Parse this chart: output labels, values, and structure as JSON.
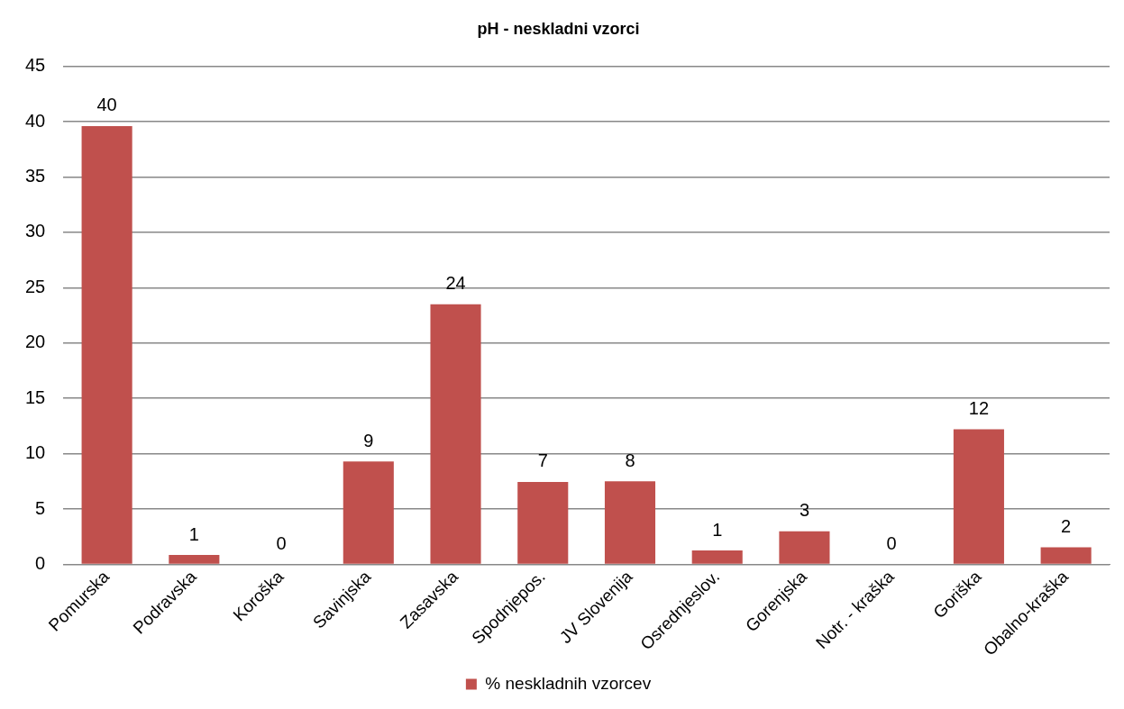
{
  "chart_data": {
    "type": "bar",
    "title": "pH - neskladni vzorci",
    "categories": [
      "Pomurska",
      "Podravska",
      "Koroška",
      "Savinjska",
      "Zasavska",
      "Spodnjepos.",
      "JV Slovenija",
      "Osrednjeslov.",
      "Gorenjska",
      "Notr. - kraška",
      "Goriška",
      "Obalno-kraška"
    ],
    "series": [
      {
        "name": "% neskladnih vzorcev",
        "color": "#c0504d",
        "values": [
          39.6,
          0.85,
          0,
          9.3,
          23.5,
          7.45,
          7.5,
          1.26,
          3.0,
          0,
          12.2,
          1.55
        ],
        "value_labels": [
          "40",
          "1",
          "0",
          "9",
          "24",
          "7",
          "8",
          "1",
          "3",
          "0",
          "12",
          "2"
        ]
      }
    ],
    "ylim": [
      0,
      45
    ],
    "yticks": [
      0,
      5,
      10,
      15,
      20,
      25,
      30,
      35,
      40,
      45
    ],
    "grid": "y",
    "legend": "bottom"
  }
}
